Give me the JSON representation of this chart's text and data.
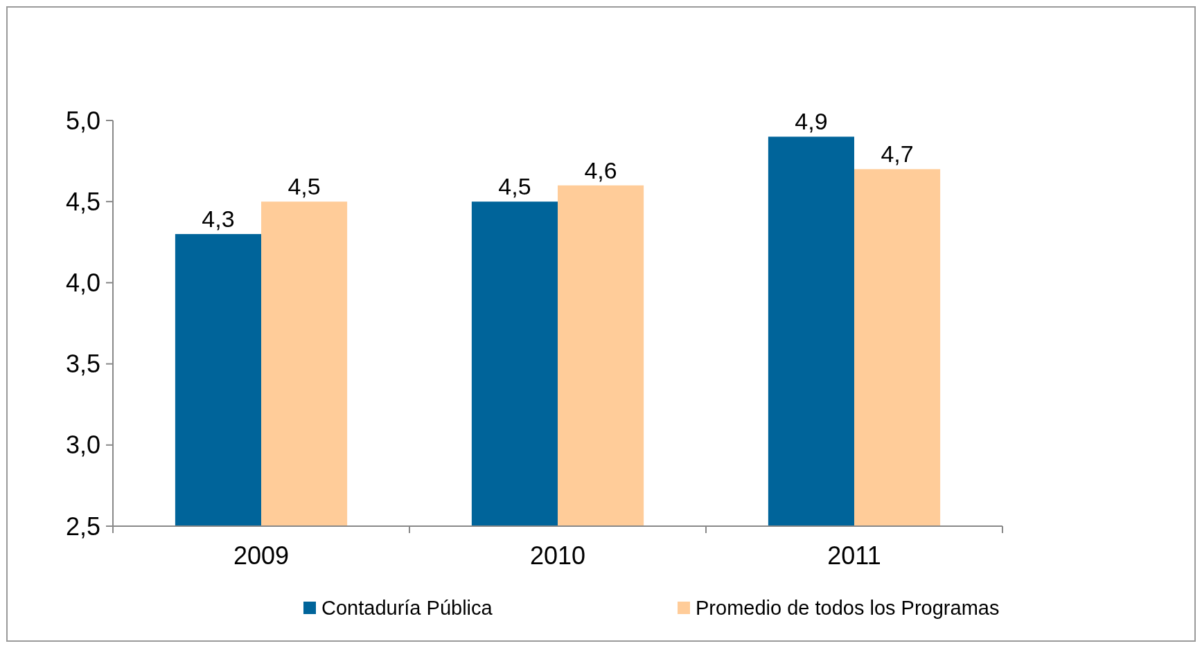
{
  "chart_data": {
    "type": "bar",
    "categories": [
      "2009",
      "2010",
      "2011"
    ],
    "series": [
      {
        "name": "Contaduría Pública",
        "color": "#00649a",
        "values": [
          4.3,
          4.5,
          4.9
        ],
        "value_labels": [
          "4,3",
          "4,5",
          "4,9"
        ]
      },
      {
        "name": "Promedio de todos los Programas",
        "color": "#ffcc99",
        "values": [
          4.5,
          4.6,
          4.7
        ],
        "value_labels": [
          "4,5",
          "4,6",
          "4,7"
        ]
      }
    ],
    "ylim": [
      2.5,
      5.0
    ],
    "yticks": [
      {
        "value": 2.5,
        "label": "2,5"
      },
      {
        "value": 3.0,
        "label": "3,0"
      },
      {
        "value": 3.5,
        "label": "3,5"
      },
      {
        "value": 4.0,
        "label": "4,0"
      },
      {
        "value": 4.5,
        "label": "4,5"
      },
      {
        "value": 5.0,
        "label": "5,0"
      }
    ],
    "grid": false,
    "legend": "bottom"
  }
}
